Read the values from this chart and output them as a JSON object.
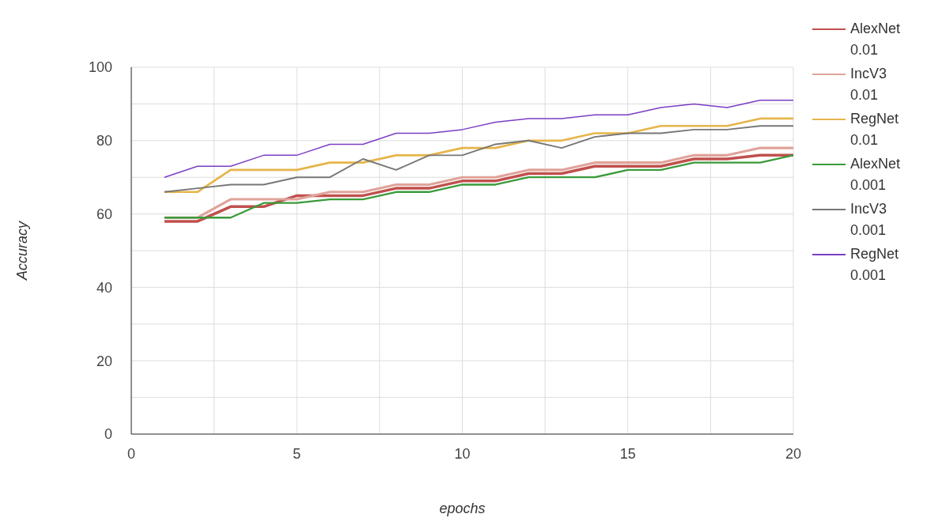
{
  "chart_data": {
    "type": "line",
    "xlabel": "epochs",
    "ylabel": "Accuracy",
    "x": [
      1,
      2,
      3,
      4,
      5,
      6,
      7,
      8,
      9,
      10,
      11,
      12,
      13,
      14,
      15,
      16,
      17,
      18,
      19,
      20
    ],
    "xlim": [
      0,
      20
    ],
    "xticks": [
      0,
      {
        "value": 2.5,
        "label": null
      },
      5,
      {
        "value": 7.5,
        "label": null
      },
      10,
      {
        "value": 12.5,
        "label": null
      },
      15,
      {
        "value": 17.5,
        "label": null
      },
      20
    ],
    "ylim": [
      0,
      100
    ],
    "yticks": [
      0,
      {
        "value": 10,
        "label": null
      },
      20,
      {
        "value": 30,
        "label": null
      },
      40,
      {
        "value": 50,
        "label": null
      },
      60,
      {
        "value": 70,
        "label": null
      },
      80,
      {
        "value": 90,
        "label": null
      },
      100
    ],
    "grid": true,
    "legend": "right",
    "marker": "none",
    "line_style": "solid",
    "series": [
      {
        "name": "AlexNet 0.01",
        "color": "#c0504d",
        "values": [
          58,
          58,
          62,
          62,
          65,
          65,
          65,
          67,
          67,
          69,
          69,
          71,
          71,
          73,
          73,
          73,
          75,
          75,
          76,
          76
        ]
      },
      {
        "name": "IncV3 0.01",
        "color": "#e0a39a",
        "values": [
          59,
          59,
          64,
          64,
          64,
          66,
          66,
          68,
          68,
          70,
          70,
          72,
          72,
          74,
          74,
          74,
          76,
          76,
          78,
          78
        ]
      },
      {
        "name": "RegNet 0.01",
        "color": "#e6b54a",
        "values": [
          66,
          66,
          72,
          72,
          72,
          74,
          74,
          76,
          76,
          78,
          78,
          80,
          80,
          82,
          82,
          84,
          84,
          84,
          86,
          86
        ]
      },
      {
        "name": "AlexNet 0.001",
        "color": "#3a9a3a",
        "values": [
          59,
          59,
          59,
          63,
          63,
          64,
          64,
          66,
          66,
          68,
          68,
          70,
          70,
          70,
          72,
          72,
          74,
          74,
          74,
          76
        ]
      },
      {
        "name": "IncV3 0.001",
        "color": "#777777",
        "values": [
          66,
          67,
          68,
          68,
          70,
          70,
          75,
          72,
          76,
          76,
          79,
          80,
          78,
          81,
          82,
          82,
          83,
          83,
          84,
          84
        ]
      },
      {
        "name": "RegNet 0.001",
        "color": "#7b3fc4",
        "values": [
          70,
          73,
          73,
          76,
          76,
          79,
          79,
          82,
          82,
          83,
          85,
          86,
          86,
          87,
          87,
          89,
          90,
          89,
          91,
          91
        ]
      }
    ]
  }
}
